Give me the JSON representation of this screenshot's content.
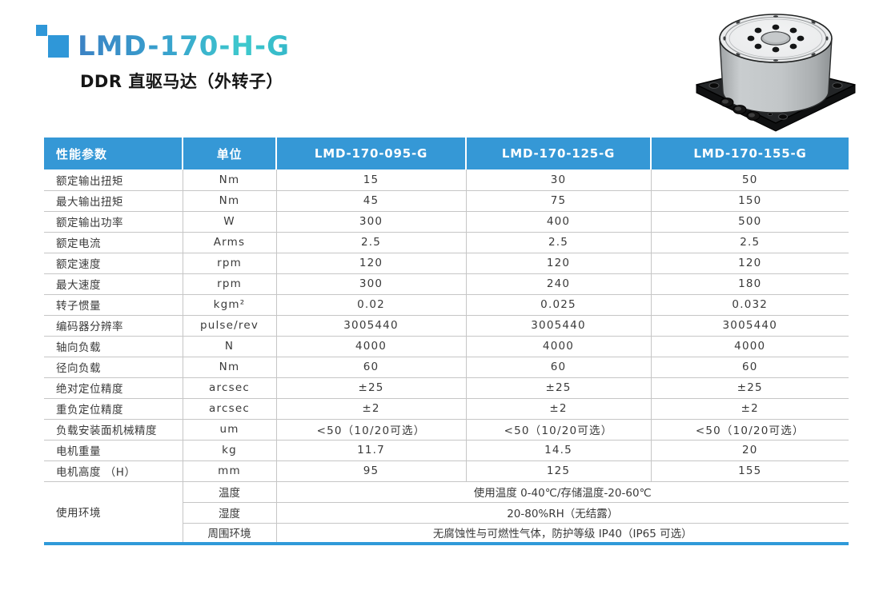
{
  "header": {
    "title": "LMD-170-H-G",
    "subtitle": "DDR 直驱马达（外转子）"
  },
  "colors": {
    "accent_blue": "#3598d6",
    "title_gradient_start": "#3b82c4",
    "title_gradient_end": "#3ec9cd",
    "logo_blue": "#2f97d8",
    "row_border": "#c6c6c6"
  },
  "table": {
    "headers": [
      "性能参数",
      "单位",
      "LMD-170-095-G",
      "LMD-170-125-G",
      "LMD-170-155-G"
    ],
    "rows": [
      {
        "label": "额定输出扭矩",
        "unit": "Nm",
        "values": [
          "15",
          "30",
          "50"
        ]
      },
      {
        "label": "最大输出扭矩",
        "unit": "Nm",
        "values": [
          "45",
          "75",
          "150"
        ]
      },
      {
        "label": "额定输出功率",
        "unit": "W",
        "values": [
          "300",
          "400",
          "500"
        ]
      },
      {
        "label": "额定电流",
        "unit": "Arms",
        "values": [
          "2.5",
          "2.5",
          "2.5"
        ]
      },
      {
        "label": "额定速度",
        "unit": "rpm",
        "values": [
          "120",
          "120",
          "120"
        ]
      },
      {
        "label": "最大速度",
        "unit": "rpm",
        "values": [
          "300",
          "240",
          "180"
        ]
      },
      {
        "label": "转子惯量",
        "unit": "kgm²",
        "values": [
          "0.02",
          "0.025",
          "0.032"
        ]
      },
      {
        "label": "编码器分辨率",
        "unit": "pulse/rev",
        "values": [
          "3005440",
          "3005440",
          "3005440"
        ]
      },
      {
        "label": "轴向负载",
        "unit": "N",
        "values": [
          "4000",
          "4000",
          "4000"
        ]
      },
      {
        "label": "径向负载",
        "unit": "Nm",
        "values": [
          "60",
          "60",
          "60"
        ]
      },
      {
        "label": "绝对定位精度",
        "unit": "arcsec",
        "values": [
          "±25",
          "±25",
          "±25"
        ]
      },
      {
        "label": "重负定位精度",
        "unit": "arcsec",
        "values": [
          "±2",
          "±2",
          "±2"
        ]
      },
      {
        "label": "负载安装面机械精度",
        "unit": "um",
        "values": [
          "<50（10/20可选）",
          "<50（10/20可选）",
          "<50（10/20可选）"
        ]
      },
      {
        "label": "电机重量",
        "unit": "kg",
        "values": [
          "11.7",
          "14.5",
          "20"
        ]
      },
      {
        "label": "电机高度 （H）",
        "unit": "mm",
        "values": [
          "95",
          "125",
          "155"
        ]
      }
    ],
    "env_group": {
      "label": "使用环境",
      "rows": [
        {
          "sub": "温度",
          "value": "使用温度 0-40℃/存储温度-20-60℃"
        },
        {
          "sub": "湿度",
          "value": "20-80%RH（无结露）"
        },
        {
          "sub": "周围环境",
          "value": "无腐蚀性与可燃性气体，防护等级 IP40（IP65 可选）"
        }
      ]
    }
  }
}
